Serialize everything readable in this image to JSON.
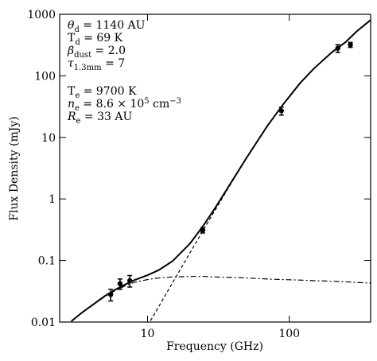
{
  "chart_data": {
    "type": "scatter",
    "x_label": "Frequency (GHz)",
    "y_label": "Flux Density (mJy)",
    "log_x": true,
    "log_y": true,
    "xlim": [
      2.4,
      375
    ],
    "ylim": [
      0.01,
      1000
    ],
    "xticks": [
      10,
      100
    ],
    "yticks": [
      0.01,
      0.1,
      1,
      10,
      100,
      1000
    ],
    "points": {
      "color": "#000000",
      "x": [
        5.5,
        6.4,
        7.5,
        24.5,
        88,
        220,
        270
      ],
      "values": [
        0.028,
        0.042,
        0.047,
        0.31,
        27,
        280,
        320
      ],
      "errors": [
        0.006,
        0.008,
        0.01,
        0.03,
        4,
        40,
        30
      ]
    },
    "series": [
      {
        "dash": "solid",
        "color": "#000000",
        "x": [
          2.9,
          3.5,
          4,
          5,
          6,
          7,
          8,
          10,
          12,
          15,
          20,
          25,
          30,
          40,
          50,
          70,
          90,
          120,
          150,
          200,
          250,
          300,
          375
        ],
        "values": [
          0.0103,
          0.0146,
          0.0182,
          0.0265,
          0.0341,
          0.0411,
          0.0476,
          0.0577,
          0.0698,
          0.0973,
          0.19,
          0.38,
          0.714,
          2.05,
          4.67,
          15.35,
          33.85,
          77.55,
          133,
          242,
          355,
          531,
          807
        ]
      },
      {
        "dash": "dashed",
        "color": "#000000",
        "x": [
          10.5,
          12,
          15,
          20,
          25,
          30,
          40,
          50,
          70,
          90,
          120,
          150,
          200,
          250,
          300,
          375
        ],
        "values": [
          0.0105,
          0.0178,
          0.0433,
          0.135,
          0.325,
          0.66,
          2.0,
          4.62,
          15.3,
          33.8,
          77.5,
          133,
          242,
          355,
          531,
          807
        ]
      },
      {
        "dash": "dashdot",
        "color": "#000000",
        "x": [
          2.9,
          3.5,
          4,
          5,
          6,
          7,
          8,
          10,
          12,
          15,
          20,
          25,
          30,
          40,
          50,
          70,
          90,
          120,
          150,
          200,
          250,
          300,
          375
        ],
        "values": [
          0.0103,
          0.0145,
          0.018,
          0.026,
          0.033,
          0.039,
          0.044,
          0.049,
          0.052,
          0.054,
          0.055,
          0.055,
          0.054,
          0.053,
          0.052,
          0.05,
          0.049,
          0.048,
          0.047,
          0.046,
          0.045,
          0.044,
          0.043
        ]
      }
    ],
    "annotations": [
      {
        "symbol": "θ",
        "italic": true,
        "subscript": "d",
        "text": [
          " = 1140 AU"
        ]
      },
      {
        "symbol": "T",
        "italic": false,
        "subscript": "d",
        "text": [
          " = 69 K"
        ]
      },
      {
        "symbol": "β",
        "italic": true,
        "subscript": "dust",
        "text": [
          " = 2.0"
        ]
      },
      {
        "symbol": "τ",
        "italic": true,
        "subscript": "1.3mm",
        "text": [
          " = 7"
        ]
      },
      {
        "symbol": "T",
        "italic": false,
        "subscript": "e",
        "text": [
          " = 9700 K"
        ]
      },
      {
        "symbol": "n",
        "italic": true,
        "subscript": "e",
        "text": [
          " = 8.6 × 10",
          {
            "sup": "5"
          },
          " cm",
          {
            "sup": "−3"
          }
        ]
      },
      {
        "symbol": "R",
        "italic": true,
        "subscript": "e",
        "text": [
          " = 33 AU"
        ]
      }
    ]
  }
}
